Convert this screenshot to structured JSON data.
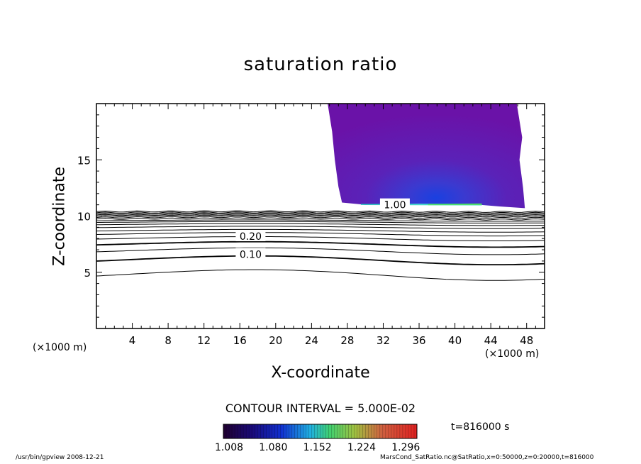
{
  "chart_data": {
    "type": "contour",
    "title": "saturation ratio",
    "xlabel": "X-coordinate",
    "ylabel": "Z-coordinate",
    "x_unit_label": "(×1000 m)",
    "xlim": [
      0,
      50
    ],
    "ylim": [
      0,
      20
    ],
    "x_ticks": [
      "4",
      "8",
      "12",
      "16",
      "20",
      "24",
      "28",
      "32",
      "36",
      "40",
      "44",
      "48"
    ],
    "y_ticks": [
      "5",
      "10",
      "15"
    ],
    "contour_interval_text": "CONTOUR INTERVAL = 5.000E-02",
    "contour_labels": [
      {
        "text": "0.10",
        "x": 17.2,
        "y": 6.6
      },
      {
        "text": "0.20",
        "x": 17.2,
        "y": 8.2
      },
      {
        "text": "1.00",
        "x": 33.3,
        "y": 11.0
      }
    ],
    "contour_levels_base_z": [
      4.8,
      6.1,
      6.9,
      7.5,
      8.0,
      8.4,
      8.7,
      9.0,
      9.25,
      9.45,
      9.6,
      9.75,
      9.88,
      10.0,
      10.1,
      10.2,
      10.3,
      10.4
    ],
    "contour_amplitudes": [
      0.55,
      0.45,
      0.35,
      0.28,
      0.22,
      0.18,
      0.14,
      0.12,
      0.1,
      0.08,
      0.07,
      0.06,
      0.05,
      0.05,
      0.04,
      0.04,
      0.03,
      0.03
    ],
    "shaded_region": {
      "x_range": [
        25.8,
        47.8
      ],
      "z_range": [
        10.7,
        20
      ],
      "peak_x": 38.0,
      "peak_z": 11.1
    },
    "colorbar": {
      "ticks": [
        "1.008",
        "1.080",
        "1.152",
        "1.224",
        "1.296"
      ],
      "min": 1.008,
      "max": 1.296
    },
    "time_label": "t=816000 s",
    "footer_left": "/usr/bin/gpview   2008-12-21",
    "footer_right": "MarsCond_SatRatio.nc@SatRatio,x=0:50000,z=0:20000,t=816000"
  }
}
